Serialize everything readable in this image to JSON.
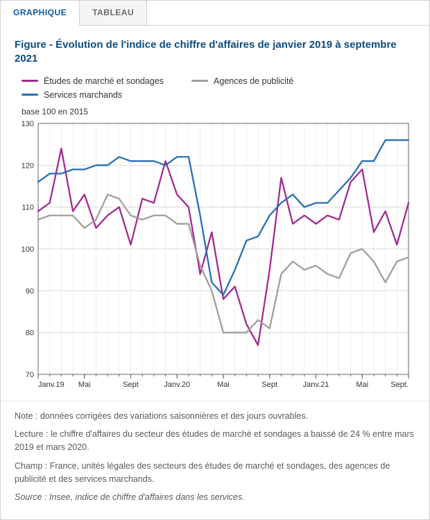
{
  "tabs": {
    "graphique": "GRAPHIQUE",
    "tableau": "TABLEAU",
    "active": "graphique"
  },
  "chart": {
    "type": "line",
    "title": "Figure - Évolution de l'indice de chiffre d'affaires de janvier 2019 à septembre 2021",
    "y_axis_title": "base 100 en 2015",
    "ylim": [
      70,
      130
    ],
    "ytick_step": 10,
    "yticks": [
      70,
      80,
      90,
      100,
      110,
      120,
      130
    ],
    "x_count": 33,
    "x_major_ticks": [
      0,
      4,
      8,
      12,
      16,
      20,
      24,
      28,
      32
    ],
    "x_major_labels": [
      "Janv.19",
      "Mai",
      "Sept",
      "Janv.20",
      "Mai",
      "Sept",
      "Janv.21",
      "Mai",
      "Sept."
    ],
    "background_color": "#ffffff",
    "grid_color": "#d9d9d9",
    "axis_color": "#666666",
    "tick_font_size": 11,
    "title_color": "#0b4d82",
    "title_fontsize": 15,
    "line_width": 2.3,
    "series": [
      {
        "name": "Études de marché et sondages",
        "color": "#a22a8f",
        "values": [
          109,
          111,
          124,
          109,
          113,
          105,
          108,
          110,
          101,
          112,
          111,
          121,
          113,
          110,
          94,
          104,
          88,
          91,
          82,
          77,
          95,
          117,
          106,
          108,
          106,
          108,
          107,
          116,
          119,
          104,
          109,
          101,
          111
        ]
      },
      {
        "name": "Agences de publicité",
        "color": "#9e9e9e",
        "values": [
          107,
          108,
          108,
          108,
          105,
          107,
          113,
          112,
          108,
          107,
          108,
          108,
          106,
          106,
          96,
          90,
          80,
          80,
          80,
          83,
          81,
          94,
          97,
          95,
          96,
          94,
          93,
          99,
          100,
          97,
          92,
          97,
          98
        ]
      },
      {
        "name": "Services marchands",
        "color": "#286eb4",
        "values": [
          116,
          118,
          118,
          119,
          119,
          120,
          120,
          122,
          121,
          121,
          121,
          120,
          122,
          122,
          108,
          92,
          89,
          95,
          102,
          103,
          108,
          111,
          113,
          110,
          111,
          111,
          114,
          117,
          121,
          121,
          126,
          126,
          126
        ]
      }
    ]
  },
  "notes": {
    "note": "Note : données corrigées des variations saisonnières et des jours ouvrables.",
    "lecture": "Lecture : le chiffre d'affaires du secteur des études de marché et sondages a baissé de 24 % entre mars 2019 et mars 2020.",
    "champ": "Champ : France, unités légales des secteurs des études de marché et sondages, des agences de publicité et des services marchands.",
    "source": "Source : Insee, indice de chiffre d'affaires dans les services."
  }
}
